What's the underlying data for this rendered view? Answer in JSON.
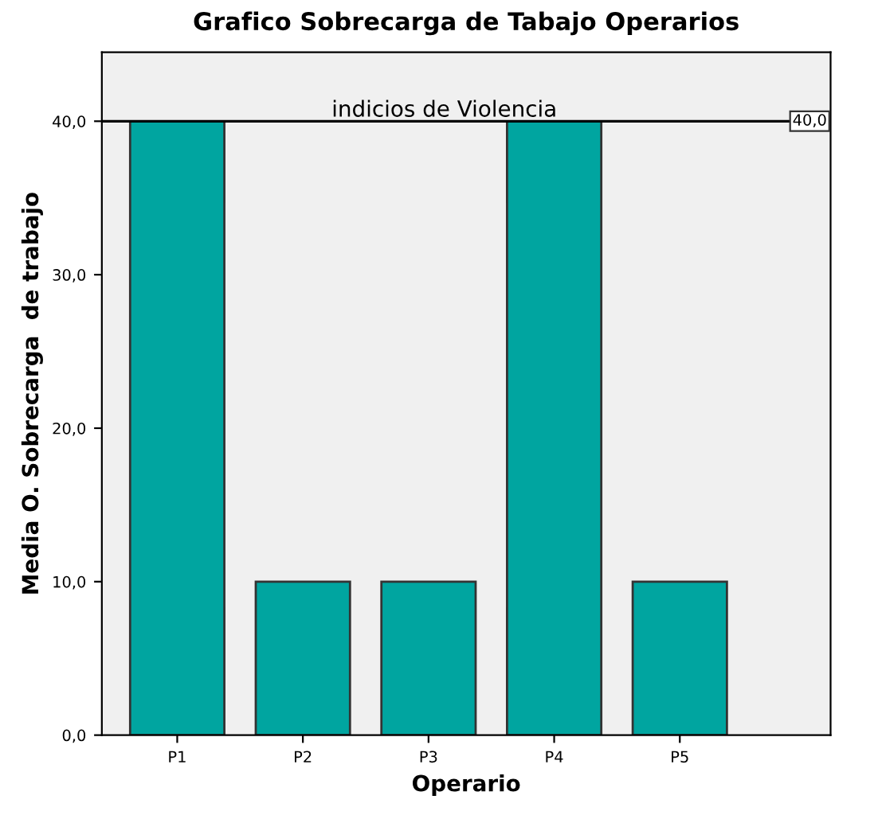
{
  "chart_data": {
    "type": "bar",
    "title": "Grafico Sobrecarga de Tabajo Operarios",
    "xlabel": "Operario",
    "ylabel": "Media O. Sobrecarga  de trabajo",
    "categories": [
      "P1",
      "P2",
      "P3",
      "P4",
      "P5"
    ],
    "values": [
      40,
      10,
      10,
      40,
      10
    ],
    "color": "#00a5a0",
    "ylim": [
      0,
      44.5
    ],
    "yticks": [
      {
        "value": 0,
        "label": "0,0"
      },
      {
        "value": 10,
        "label": "10,0"
      },
      {
        "value": 20,
        "label": "20,0"
      },
      {
        "value": 30,
        "label": "30,0"
      },
      {
        "value": 40,
        "label": "40,0"
      }
    ],
    "ref_lines": [
      {
        "axis": "y",
        "value": 40,
        "label": "indicios de Violencia",
        "color": "#000000"
      }
    ],
    "annotations": [
      {
        "text": "40,0",
        "y": 40
      }
    ],
    "grid": false,
    "legend": false
  }
}
